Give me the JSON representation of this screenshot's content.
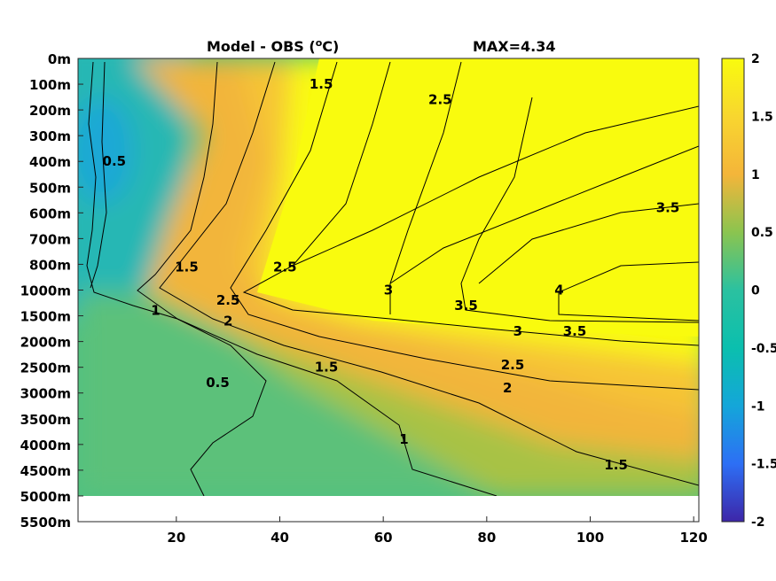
{
  "chart_data": {
    "type": "heatmap",
    "title": "Model - OBS (",
    "title_unit": "o",
    "title_suffix": "C)",
    "max_label": "MAX=4.34",
    "y_tick_labels": [
      "0m",
      "100m",
      "200m",
      "300m",
      "400m",
      "500m",
      "600m",
      "700m",
      "800m",
      "1000m",
      "1500m",
      "2000m",
      "2500m",
      "3000m",
      "3500m",
      "4000m",
      "4500m",
      "5000m",
      "5500m"
    ],
    "x_ticks": [
      20,
      40,
      60,
      80,
      100,
      120
    ],
    "xlim": [
      1,
      121
    ],
    "colorbar": {
      "range": [
        -2,
        2
      ],
      "ticks": [
        "2",
        "1.5",
        "1",
        "0.5",
        "0",
        "-0.5",
        "-1",
        "-1.5",
        "-2"
      ],
      "colors": [
        "#3d26a8",
        "#2d6ff5",
        "#14a6d9",
        "#0bbfae",
        "#54c46d",
        "#aec341",
        "#f4b53a",
        "#f9de2d",
        "#f9fb0e"
      ]
    },
    "contour_levels": [
      0,
      0.5,
      1,
      1.5,
      2,
      2.5,
      3,
      3.5,
      4
    ],
    "contour_labels": [
      {
        "text": "1",
        "x": 16,
        "y": 1400
      },
      {
        "text": "2",
        "x": 30,
        "y": 1600
      },
      {
        "text": "0.5",
        "x": 28,
        "y": 2800
      },
      {
        "text": "1.5",
        "x": 49,
        "y": 2500
      },
      {
        "text": "3",
        "x": 86,
        "y": 1800
      },
      {
        "text": "3.5",
        "x": 97,
        "y": 1800
      },
      {
        "text": "2.5",
        "x": 85,
        "y": 2450
      },
      {
        "text": "2",
        "x": 84,
        "y": 2900
      },
      {
        "text": "1",
        "x": 64,
        "y": 3900
      },
      {
        "text": "1.5",
        "x": 105,
        "y": 4400
      },
      {
        "text": "0.5",
        "x": 8,
        "y": 400
      },
      {
        "text": "1.5",
        "x": 48,
        "y": 100
      },
      {
        "text": "2.5",
        "x": 41,
        "y": 820
      },
      {
        "text": "2.5",
        "x": 30,
        "y": 1200
      },
      {
        "text": "3",
        "x": 61,
        "y": 1000
      },
      {
        "text": "3.5",
        "x": 76,
        "y": 1300
      },
      {
        "text": "4",
        "x": 94,
        "y": 1000
      },
      {
        "text": "3.5",
        "x": 115,
        "y": 580
      },
      {
        "text": "2.5",
        "x": 71,
        "y": 160
      },
      {
        "text": "1.5",
        "x": 22,
        "y": 820
      }
    ]
  }
}
